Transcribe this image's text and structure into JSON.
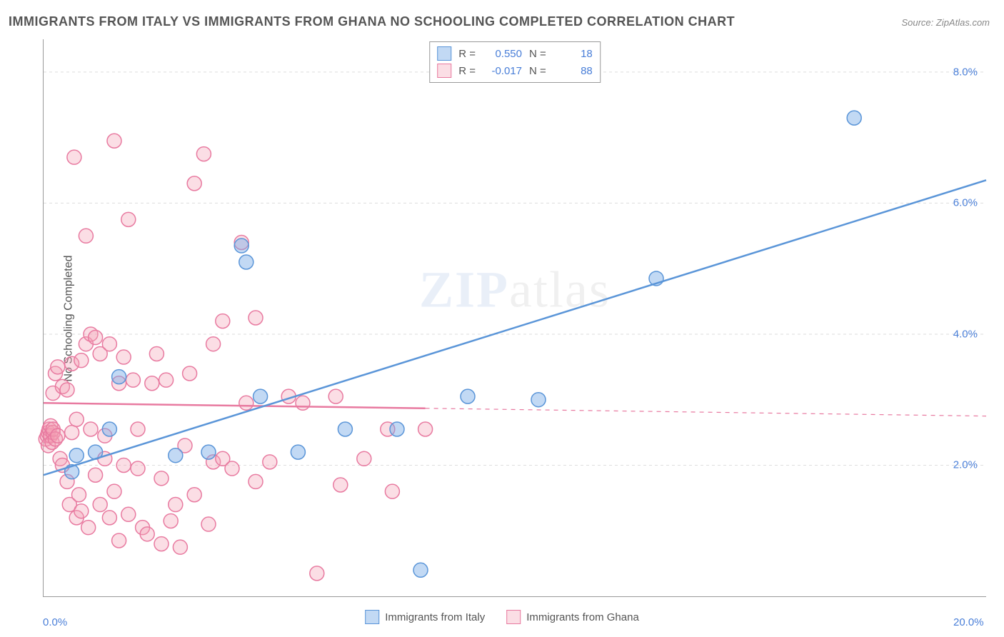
{
  "title": "IMMIGRANTS FROM ITALY VS IMMIGRANTS FROM GHANA NO SCHOOLING COMPLETED CORRELATION CHART",
  "source": "Source: ZipAtlas.com",
  "watermark_a": "ZIP",
  "watermark_b": "atlas",
  "y_axis_label": "No Schooling Completed",
  "chart": {
    "type": "scatter",
    "xlim": [
      0,
      20
    ],
    "ylim": [
      0,
      8.5
    ],
    "y_ticks": [
      2.0,
      4.0,
      6.0,
      8.0
    ],
    "y_tick_labels": [
      "2.0%",
      "4.0%",
      "6.0%",
      "8.0%"
    ],
    "x_ticks": [
      0,
      20
    ],
    "x_tick_labels": [
      "0.0%",
      "20.0%"
    ],
    "grid_color": "#dddddd",
    "axis_color": "#999999",
    "background_color": "#ffffff",
    "marker_radius": 10,
    "marker_stroke_width": 1.5,
    "line_width": 2.5,
    "series": [
      {
        "name": "Immigrants from Ghana",
        "color_fill": "rgba(244,160,180,0.35)",
        "color_stroke": "#e87aa0",
        "R": "-0.017",
        "N": "88",
        "trend": {
          "x1": 0,
          "y1": 2.95,
          "x2": 20,
          "y2": 2.75,
          "solid_until_x": 8.1
        },
        "points": [
          [
            0.05,
            2.4
          ],
          [
            0.08,
            2.45
          ],
          [
            0.1,
            2.5
          ],
          [
            0.1,
            2.3
          ],
          [
            0.12,
            2.55
          ],
          [
            0.15,
            2.45
          ],
          [
            0.15,
            2.6
          ],
          [
            0.18,
            2.35
          ],
          [
            0.2,
            2.5
          ],
          [
            0.2,
            2.55
          ],
          [
            0.2,
            3.1
          ],
          [
            0.25,
            2.4
          ],
          [
            0.25,
            3.4
          ],
          [
            0.3,
            2.45
          ],
          [
            0.3,
            3.5
          ],
          [
            0.35,
            2.1
          ],
          [
            0.4,
            2.0
          ],
          [
            0.4,
            3.2
          ],
          [
            0.5,
            3.15
          ],
          [
            0.5,
            1.75
          ],
          [
            0.55,
            1.4
          ],
          [
            0.6,
            2.5
          ],
          [
            0.6,
            3.55
          ],
          [
            0.65,
            6.7
          ],
          [
            0.7,
            1.2
          ],
          [
            0.7,
            2.7
          ],
          [
            0.75,
            1.55
          ],
          [
            0.8,
            1.3
          ],
          [
            0.8,
            3.6
          ],
          [
            0.9,
            5.5
          ],
          [
            0.9,
            3.85
          ],
          [
            0.95,
            1.05
          ],
          [
            1.0,
            2.55
          ],
          [
            1.0,
            4.0
          ],
          [
            1.1,
            1.85
          ],
          [
            1.1,
            3.95
          ],
          [
            1.2,
            1.4
          ],
          [
            1.2,
            3.7
          ],
          [
            1.3,
            2.1
          ],
          [
            1.3,
            2.45
          ],
          [
            1.4,
            1.2
          ],
          [
            1.4,
            3.85
          ],
          [
            1.5,
            6.95
          ],
          [
            1.5,
            1.6
          ],
          [
            1.6,
            3.25
          ],
          [
            1.6,
            0.85
          ],
          [
            1.7,
            2.0
          ],
          [
            1.7,
            3.65
          ],
          [
            1.8,
            1.25
          ],
          [
            1.8,
            5.75
          ],
          [
            1.9,
            3.3
          ],
          [
            2.0,
            1.95
          ],
          [
            2.0,
            2.55
          ],
          [
            2.1,
            1.05
          ],
          [
            2.2,
            0.95
          ],
          [
            2.3,
            3.25
          ],
          [
            2.4,
            3.7
          ],
          [
            2.5,
            1.8
          ],
          [
            2.5,
            0.8
          ],
          [
            2.6,
            3.3
          ],
          [
            2.7,
            1.15
          ],
          [
            2.8,
            1.4
          ],
          [
            2.9,
            0.75
          ],
          [
            3.0,
            2.3
          ],
          [
            3.1,
            3.4
          ],
          [
            3.2,
            6.3
          ],
          [
            3.2,
            1.55
          ],
          [
            3.4,
            6.75
          ],
          [
            3.5,
            1.1
          ],
          [
            3.6,
            2.05
          ],
          [
            3.6,
            3.85
          ],
          [
            3.8,
            2.1
          ],
          [
            3.8,
            4.2
          ],
          [
            4.0,
            1.95
          ],
          [
            4.2,
            5.4
          ],
          [
            4.3,
            2.95
          ],
          [
            4.5,
            4.25
          ],
          [
            4.5,
            1.75
          ],
          [
            4.8,
            2.05
          ],
          [
            5.2,
            3.05
          ],
          [
            5.5,
            2.95
          ],
          [
            5.8,
            0.35
          ],
          [
            6.2,
            3.05
          ],
          [
            6.3,
            1.7
          ],
          [
            6.8,
            2.1
          ],
          [
            7.3,
            2.55
          ],
          [
            7.4,
            1.6
          ],
          [
            8.1,
            2.55
          ]
        ]
      },
      {
        "name": "Immigrants from Italy",
        "color_fill": "rgba(120,170,230,0.45)",
        "color_stroke": "#5a95d8",
        "R": "0.550",
        "N": "18",
        "trend": {
          "x1": 0,
          "y1": 1.85,
          "x2": 20,
          "y2": 6.35,
          "solid_until_x": 20
        },
        "points": [
          [
            0.6,
            1.9
          ],
          [
            0.7,
            2.15
          ],
          [
            1.1,
            2.2
          ],
          [
            1.4,
            2.55
          ],
          [
            1.6,
            3.35
          ],
          [
            2.8,
            2.15
          ],
          [
            3.5,
            2.2
          ],
          [
            4.2,
            5.35
          ],
          [
            4.3,
            5.1
          ],
          [
            4.6,
            3.05
          ],
          [
            5.4,
            2.2
          ],
          [
            6.4,
            2.55
          ],
          [
            7.5,
            2.55
          ],
          [
            8.0,
            0.4
          ],
          [
            9.0,
            3.05
          ],
          [
            10.5,
            3.0
          ],
          [
            13.0,
            4.85
          ],
          [
            17.2,
            7.3
          ]
        ]
      }
    ]
  },
  "legend_top": {
    "rows": [
      {
        "swatch_fill": "rgba(120,170,230,0.45)",
        "swatch_stroke": "#5a95d8",
        "r_label": "R =",
        "r_val": "0.550",
        "n_label": "N =",
        "n_val": "18"
      },
      {
        "swatch_fill": "rgba(244,160,180,0.35)",
        "swatch_stroke": "#e87aa0",
        "r_label": "R =",
        "r_val": "-0.017",
        "n_label": "N =",
        "n_val": "88"
      }
    ]
  },
  "legend_bottom": {
    "items": [
      {
        "swatch_fill": "rgba(120,170,230,0.45)",
        "swatch_stroke": "#5a95d8",
        "label": "Immigrants from Italy"
      },
      {
        "swatch_fill": "rgba(244,160,180,0.35)",
        "swatch_stroke": "#e87aa0",
        "label": "Immigrants from Ghana"
      }
    ]
  }
}
